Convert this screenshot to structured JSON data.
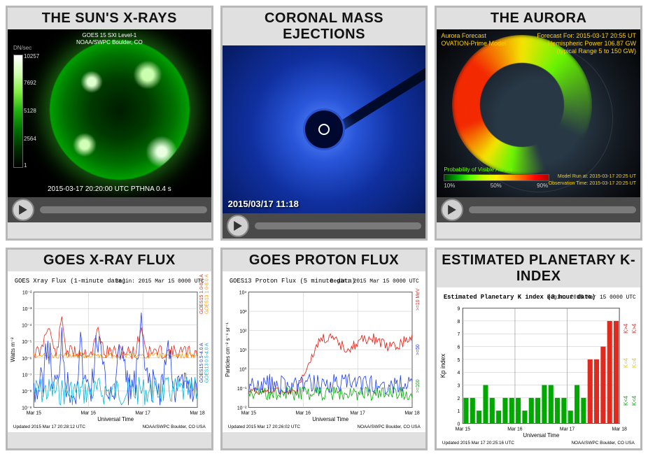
{
  "panels": {
    "sun": {
      "title": "THE SUN'S X-RAYS",
      "header_line1": "GOES 15 SXI  Level-1",
      "header_line2": "NOAA/SWPC Boulder, CO",
      "colorbar_unit": "DN/sec",
      "colorbar_ticks": [
        "10257",
        "7692",
        "5128",
        "2564",
        "1"
      ],
      "footer": "2015-03-17 20:20:00 UTC   PTHNA   0.4 s"
    },
    "cme": {
      "title": "CORONAL MASS EJECTIONS",
      "timestamp": "2015/03/17 11:18"
    },
    "aurora": {
      "title": "THE AURORA",
      "label_top1": "Aurora Forecast",
      "label_top2": "OVATION-Prime Model",
      "info_forecast": "Forecast For: 2015-03-17 20:55 UT",
      "info_power": "Hemispheric Power 106.87 GW",
      "info_range": "(typical Range 5 to 150 GW)",
      "scale_label": "Probability of Visible Aurora",
      "scale_ticks": [
        "10%",
        "50%",
        "90%"
      ],
      "info_model": "Model Run at: 2015-03-17 20:25 UT",
      "info_obs": "Observation Time: 2015-03-17 20:25 UT"
    },
    "xrayflux": {
      "title": "GOES X-RAY FLUX",
      "type": "line",
      "chart_title": "GOES Xray Flux (1-minute data)",
      "begin_label": "Begin: 2015 Mar 15 0000 UTC",
      "ylabel": "Watts m⁻²",
      "xlabel": "Universal Time",
      "xticks": [
        "Mar 15",
        "Mar 16",
        "Mar 17",
        "Mar 18"
      ],
      "yexp_ticks": [
        "10⁻²",
        "10⁻³",
        "10⁻⁴",
        "10⁻⁵",
        "10⁻⁶",
        "10⁻⁷",
        "10⁻⁸",
        "10⁻⁹"
      ],
      "legend_red": "GOES15 1.0-8.0 A",
      "legend_orange": "GOES13 1.0-8.0 A",
      "legend_blue": "GOES15 0.5-4.0 A",
      "legend_cyan": "GOES13 0.5-4.0 A",
      "footer_left": "Updated 2015 Mar 17 20:28:12 UTC",
      "footer_right": "NOAA/SWPC Boulder, CO USA",
      "colors": {
        "red": "#e02a1f",
        "orange": "#ff9a00",
        "blue": "#1c3ae8",
        "cyan": "#00b4d6",
        "grid": "#c0c0c0"
      }
    },
    "protonflux": {
      "title": "GOES PROTON FLUX",
      "type": "line",
      "chart_title": "GOES13 Proton Flux (5 minute data)",
      "begin_label": "Begin: 2015 Mar 15 0000 UTC",
      "ylabel": "Particles cm⁻² s⁻¹ sr⁻¹",
      "xlabel": "Universal Time",
      "xticks": [
        "Mar 15",
        "Mar 16",
        "Mar 17",
        "Mar 18"
      ],
      "yexp_ticks": [
        "10⁴",
        "10³",
        "10²",
        "10¹",
        "10⁰",
        "10⁻¹",
        "10⁻²"
      ],
      "legend_red": ">=10 MeV",
      "legend_blue": ">=50",
      "legend_green": ">=100",
      "footer_left": "Updated 2015 Mar 17 20:26:02 UTC",
      "footer_right": "NOAA/SWPC Boulder, CO USA",
      "colors": {
        "red": "#e02a1f",
        "blue": "#1c3ae8",
        "green": "#00a800",
        "grid": "#c0c0c0"
      }
    },
    "kindex": {
      "title": "ESTIMATED PLANETARY K-INDEX",
      "type": "bar",
      "chart_title": "Estimated Planetary K index (3 hour data)",
      "begin_label": "Begin: 2015 Mar 15 0000 UTC",
      "ylabel": "Kp index",
      "xlabel": "Universal Time",
      "xticks": [
        "Mar 15",
        "Mar 16",
        "Mar 17",
        "Mar 18"
      ],
      "ylim": [
        0,
        9
      ],
      "ytick_step": 1,
      "side_label_green": "K<4",
      "side_label_yellow": "K=4",
      "side_label_red": "K>4",
      "values": [
        2,
        2,
        1,
        3,
        2,
        1,
        2,
        2,
        2,
        1,
        2,
        2,
        3,
        3,
        2,
        2,
        1,
        3,
        2,
        5,
        5,
        6,
        8,
        8
      ],
      "colors_per_bar": [
        "#00a800",
        "#00a800",
        "#00a800",
        "#00a800",
        "#00a800",
        "#00a800",
        "#00a800",
        "#00a800",
        "#00a800",
        "#00a800",
        "#00a800",
        "#00a800",
        "#00a800",
        "#00a800",
        "#00a800",
        "#00a800",
        "#00a800",
        "#00a800",
        "#00a800",
        "#e02a1f",
        "#e02a1f",
        "#e02a1f",
        "#e02a1f",
        "#e02a1f"
      ],
      "footer_left": "Updated 2015 Mar 17 20:25:16 UTC",
      "footer_right": "NOAA/SWPC Boulder, CO USA",
      "colors": {
        "green": "#00a800",
        "yellow": "#e6c800",
        "red": "#e02a1f",
        "grid": "#c0c0c0"
      }
    }
  }
}
